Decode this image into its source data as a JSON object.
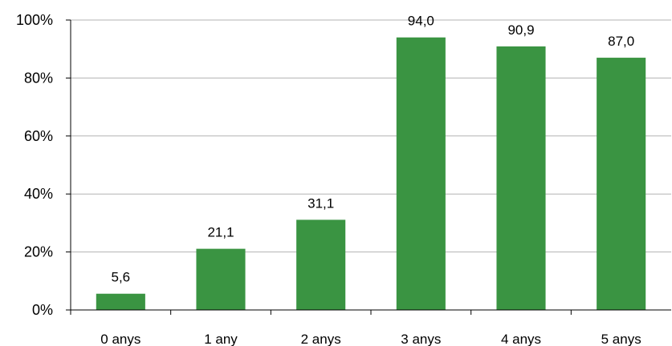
{
  "chart_data": {
    "type": "bar",
    "categories": [
      "0 anys",
      "1 any",
      "2 anys",
      "3 anys",
      "4 anys",
      "5 anys"
    ],
    "values": [
      5.6,
      21.1,
      31.1,
      94.0,
      90.9,
      87.0
    ],
    "data_labels": [
      "5,6",
      "21,1",
      "31,1",
      "94,0",
      "90,9",
      "87,0"
    ],
    "y_ticks": [
      "0%",
      "20%",
      "40%",
      "60%",
      "80%",
      "100%"
    ],
    "y_tick_values": [
      0,
      20,
      40,
      60,
      80,
      100
    ],
    "ylim": [
      0,
      100
    ],
    "grid": true,
    "legend": "none",
    "bar_color": "#3a9442"
  }
}
